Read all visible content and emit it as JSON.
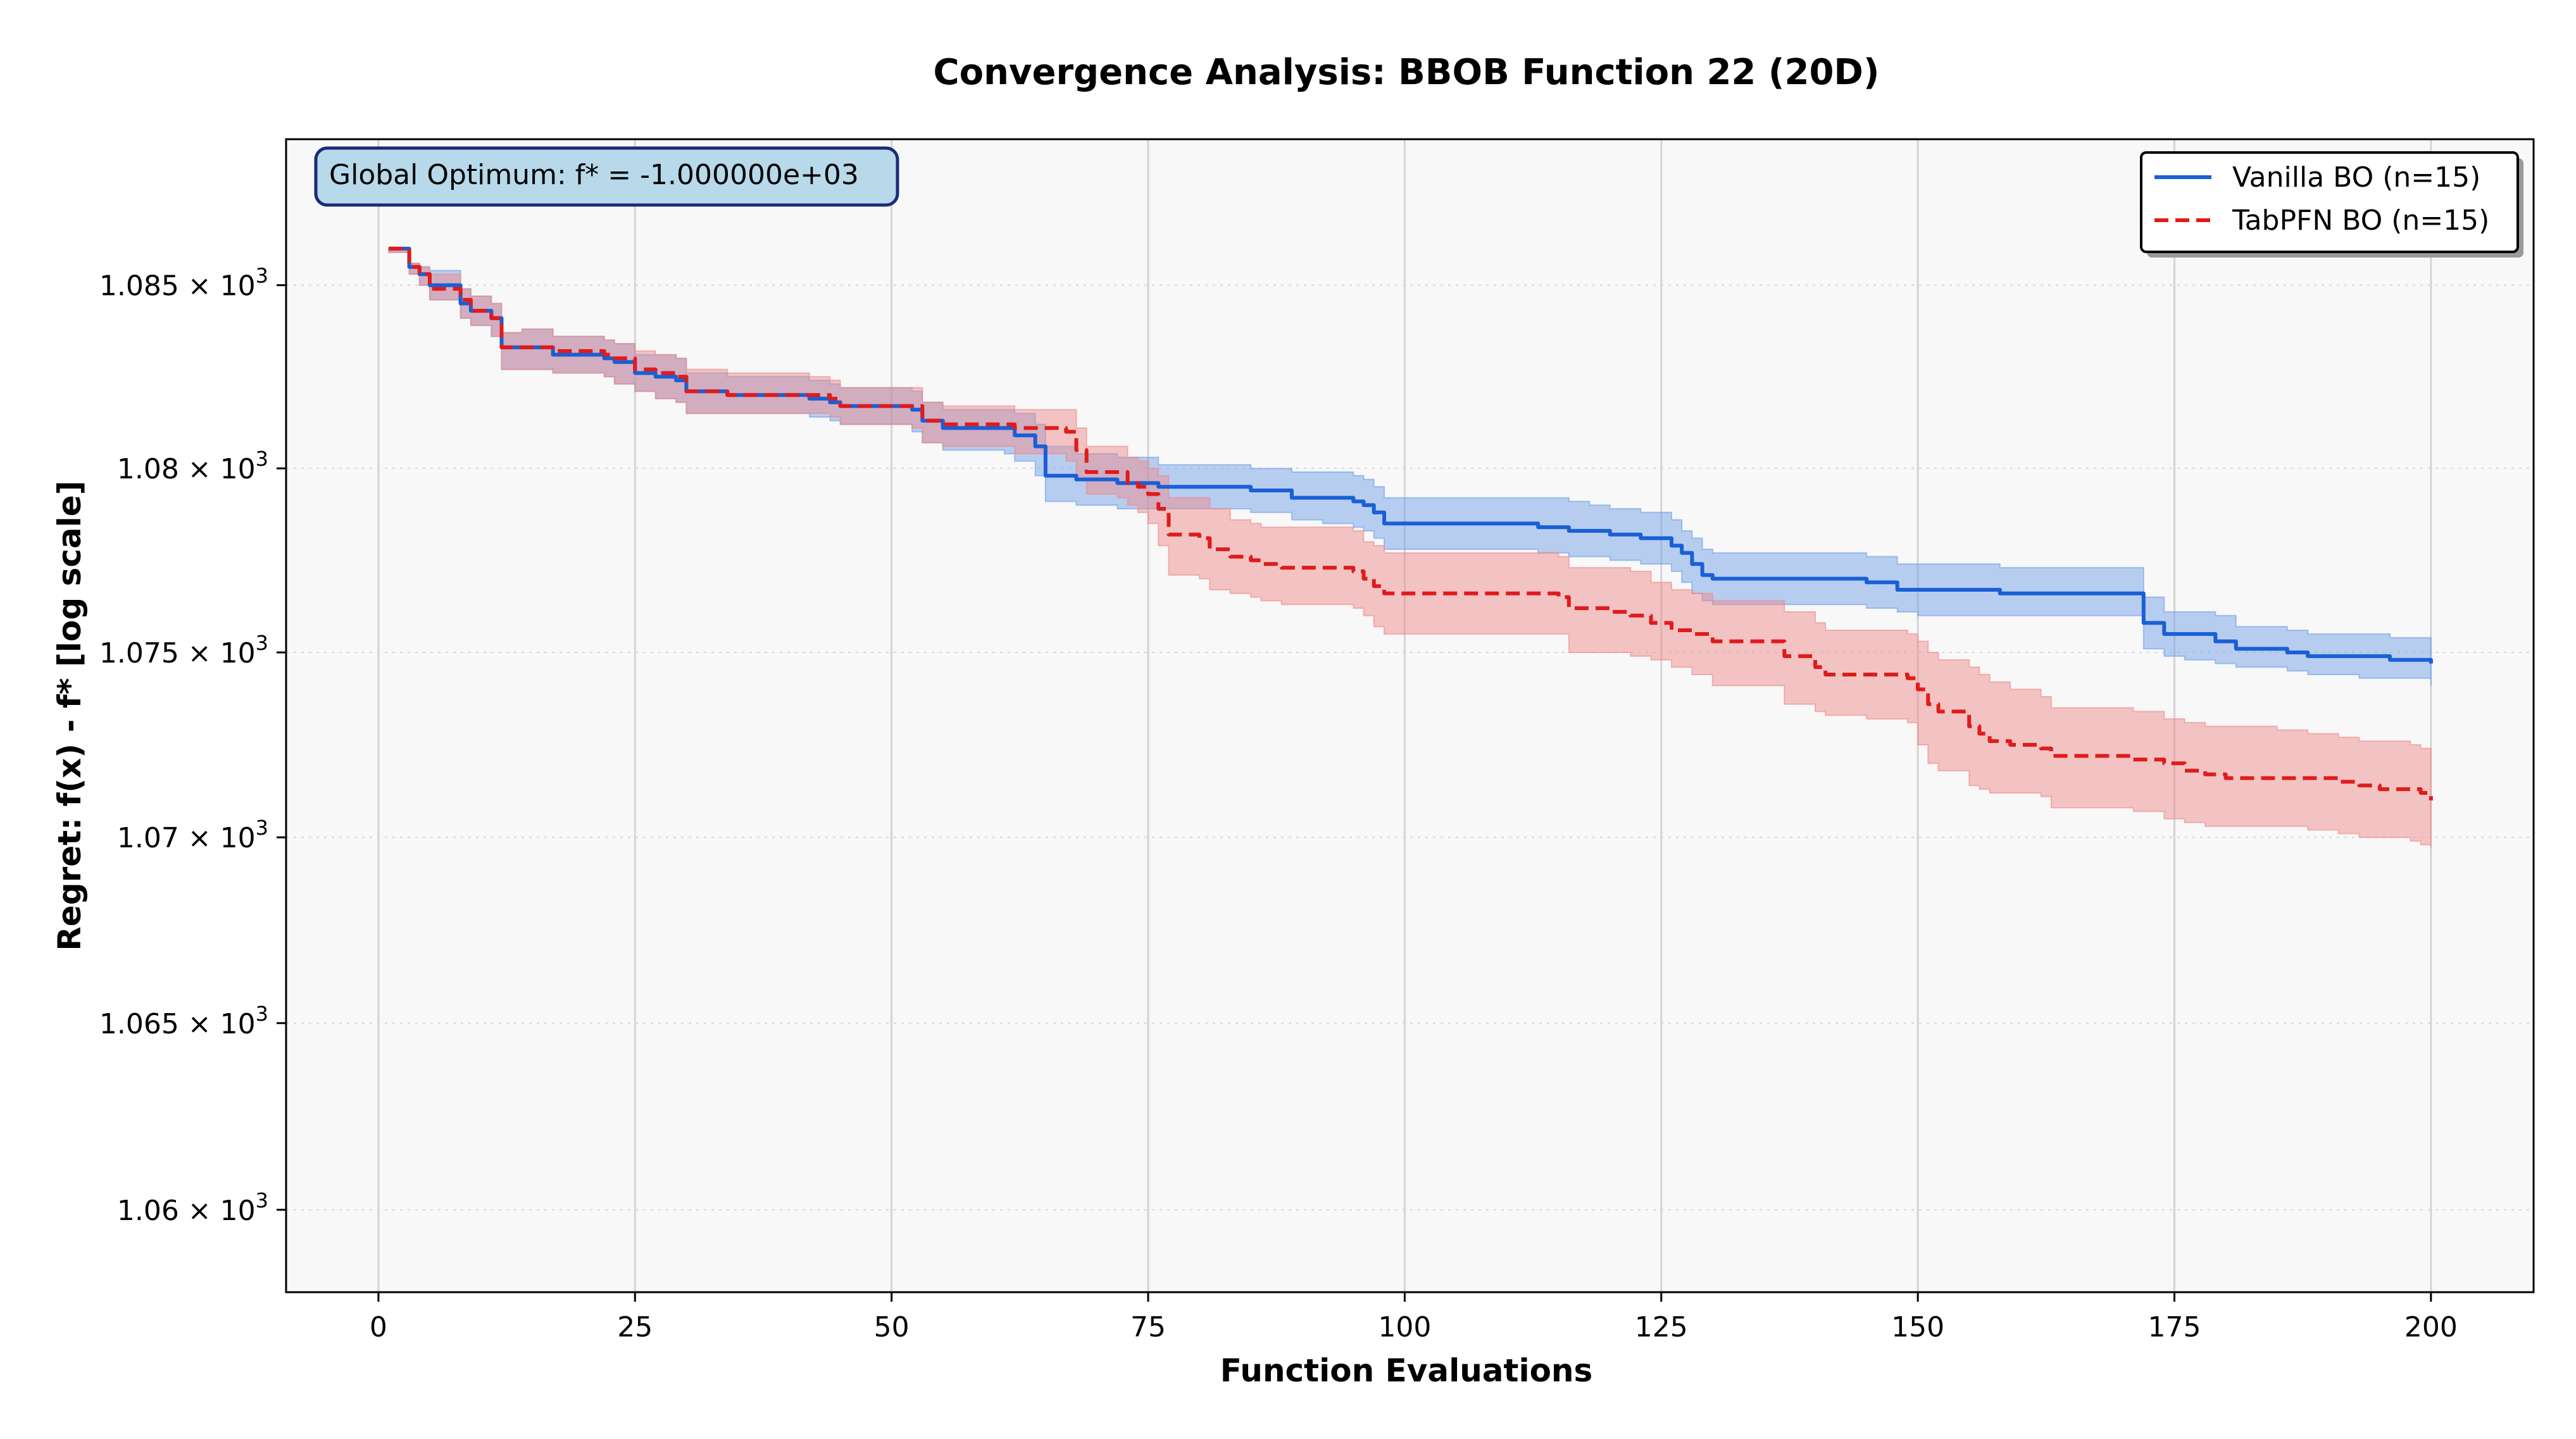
{
  "chart_data": {
    "type": "line",
    "title": "Convergence Analysis: BBOB Function 22 (20D)",
    "xlabel": "Function Evaluations",
    "ylabel": "Regret: f(x) - f* [log scale]",
    "xlim": [
      -9,
      210
    ],
    "ylim": [
      1057.8,
      1089.0
    ],
    "yscale": "log",
    "x_ticks": [
      0,
      25,
      50,
      75,
      100,
      125,
      150,
      175,
      200
    ],
    "x_tick_labels": [
      "0",
      "25",
      "50",
      "75",
      "100",
      "125",
      "150",
      "175",
      "200"
    ],
    "y_ticks": [
      1060,
      1065,
      1070,
      1075,
      1080,
      1085
    ],
    "y_tick_labels": [
      {
        "mantissa": "1.06",
        "exp": "3"
      },
      {
        "mantissa": "1.065",
        "exp": "3"
      },
      {
        "mantissa": "1.07",
        "exp": "3"
      },
      {
        "mantissa": "1.075",
        "exp": "3"
      },
      {
        "mantissa": "1.08",
        "exp": "3"
      },
      {
        "mantissa": "1.085",
        "exp": "3"
      }
    ],
    "y_tick_base": "10",
    "y_tick_times": "×",
    "grid": true,
    "legend_position": "top-right",
    "annotation": "Global Optimum: f* = -1.000000e+03",
    "series": [
      {
        "name": "Vanilla BO (n=15)",
        "color": "#1a5fd6",
        "band_color": "#6f9ee8",
        "line_style": "solid",
        "x": [
          1,
          3,
          4,
          5,
          8,
          9,
          11,
          12,
          14,
          17,
          22,
          23,
          25,
          27,
          29,
          30,
          34,
          42,
          44,
          45,
          52,
          53,
          55,
          61,
          62,
          64,
          65,
          68,
          70,
          72,
          75,
          76,
          85,
          86,
          89,
          92,
          95,
          96,
          97,
          98,
          103,
          110,
          113,
          116,
          118,
          120,
          123,
          125,
          126,
          127,
          128,
          129,
          130,
          140,
          145,
          148,
          150,
          158,
          171,
          172,
          174,
          176,
          179,
          181,
          186,
          188,
          193,
          196,
          200
        ],
        "y": [
          1086.0,
          1085.5,
          1085.3,
          1085.0,
          1084.5,
          1084.3,
          1084.1,
          1083.3,
          1083.3,
          1083.1,
          1083.0,
          1082.9,
          1082.6,
          1082.5,
          1082.4,
          1082.1,
          1082.0,
          1081.9,
          1081.8,
          1081.7,
          1081.6,
          1081.3,
          1081.1,
          1081.1,
          1080.9,
          1080.6,
          1079.8,
          1079.7,
          1079.7,
          1079.6,
          1079.6,
          1079.5,
          1079.4,
          1079.4,
          1079.2,
          1079.2,
          1079.1,
          1079.0,
          1078.8,
          1078.5,
          1078.5,
          1078.5,
          1078.4,
          1078.3,
          1078.3,
          1078.2,
          1078.1,
          1078.1,
          1077.9,
          1077.7,
          1077.4,
          1077.1,
          1077.0,
          1077.0,
          1076.9,
          1076.7,
          1076.7,
          1076.6,
          1076.6,
          1075.8,
          1075.5,
          1075.5,
          1075.3,
          1075.1,
          1075.0,
          1074.9,
          1074.9,
          1074.8,
          1074.7
        ],
        "lower": [
          1085.9,
          1085.3,
          1085.0,
          1084.6,
          1084.1,
          1083.9,
          1083.6,
          1082.7,
          1082.7,
          1082.6,
          1082.5,
          1082.3,
          1082.1,
          1081.9,
          1081.8,
          1081.5,
          1081.5,
          1081.4,
          1081.3,
          1081.2,
          1081.0,
          1080.7,
          1080.5,
          1080.4,
          1080.2,
          1079.8,
          1079.1,
          1079.0,
          1079.0,
          1078.9,
          1078.9,
          1078.9,
          1078.8,
          1078.8,
          1078.6,
          1078.5,
          1078.4,
          1078.3,
          1078.1,
          1077.8,
          1077.8,
          1077.8,
          1077.7,
          1077.6,
          1077.6,
          1077.5,
          1077.4,
          1077.4,
          1077.2,
          1076.9,
          1076.6,
          1076.4,
          1076.3,
          1076.3,
          1076.2,
          1076.1,
          1076.0,
          1076.0,
          1076.0,
          1075.1,
          1074.9,
          1074.8,
          1074.7,
          1074.6,
          1074.5,
          1074.4,
          1074.3,
          1074.3,
          1074.1
        ],
        "upper": [
          1086.0,
          1085.6,
          1085.5,
          1085.4,
          1084.9,
          1084.7,
          1084.5,
          1083.7,
          1083.8,
          1083.6,
          1083.5,
          1083.4,
          1083.1,
          1083.1,
          1083.0,
          1082.6,
          1082.5,
          1082.4,
          1082.3,
          1082.2,
          1082.1,
          1081.8,
          1081.6,
          1081.6,
          1081.5,
          1081.2,
          1080.6,
          1080.4,
          1080.4,
          1080.3,
          1080.3,
          1080.1,
          1080.0,
          1080.0,
          1079.9,
          1079.9,
          1079.8,
          1079.7,
          1079.5,
          1079.2,
          1079.2,
          1079.2,
          1079.2,
          1079.1,
          1079.0,
          1078.9,
          1078.8,
          1078.8,
          1078.6,
          1078.3,
          1078.1,
          1077.8,
          1077.7,
          1077.7,
          1077.6,
          1077.4,
          1077.4,
          1077.3,
          1077.3,
          1076.5,
          1076.1,
          1076.1,
          1076.0,
          1075.7,
          1075.6,
          1075.5,
          1075.5,
          1075.4,
          1075.3
        ]
      },
      {
        "name": "TabPFN BO (n=15)",
        "color": "#e01b1b",
        "band_color": "#ee8a8a",
        "line_style": "dashed",
        "x": [
          1,
          3,
          4,
          5,
          8,
          9,
          11,
          12,
          14,
          17,
          22,
          23,
          25,
          27,
          29,
          30,
          34,
          42,
          44,
          45,
          52,
          53,
          55,
          61,
          62,
          67,
          68,
          69,
          72,
          73,
          74,
          75,
          76,
          77,
          80,
          81,
          83,
          85,
          86,
          88,
          95,
          96,
          97,
          98,
          104,
          108,
          115,
          116,
          120,
          122,
          124,
          126,
          128,
          130,
          136,
          137,
          140,
          141,
          145,
          149,
          150,
          151,
          152,
          155,
          156,
          157,
          159,
          162,
          163,
          165,
          170,
          171,
          174,
          176,
          178,
          180,
          182,
          185,
          188,
          191,
          193,
          195,
          198,
          199,
          200
        ],
        "y": [
          1086.0,
          1085.5,
          1085.3,
          1084.9,
          1084.6,
          1084.3,
          1084.1,
          1083.3,
          1083.3,
          1083.2,
          1083.1,
          1083.0,
          1082.7,
          1082.6,
          1082.5,
          1082.1,
          1082.0,
          1082.0,
          1081.9,
          1081.7,
          1081.7,
          1081.3,
          1081.2,
          1081.2,
          1081.1,
          1081.0,
          1080.5,
          1079.9,
          1079.9,
          1079.6,
          1079.5,
          1079.3,
          1078.9,
          1078.2,
          1078.1,
          1077.8,
          1077.6,
          1077.5,
          1077.4,
          1077.3,
          1077.2,
          1077.0,
          1076.8,
          1076.6,
          1076.6,
          1076.6,
          1076.5,
          1076.2,
          1076.1,
          1076.0,
          1075.8,
          1075.6,
          1075.5,
          1075.3,
          1075.3,
          1074.9,
          1074.6,
          1074.4,
          1074.4,
          1074.3,
          1074.0,
          1073.6,
          1073.4,
          1073.0,
          1072.8,
          1072.6,
          1072.5,
          1072.4,
          1072.2,
          1072.2,
          1072.2,
          1072.1,
          1072.0,
          1071.8,
          1071.7,
          1071.6,
          1071.6,
          1071.6,
          1071.6,
          1071.5,
          1071.4,
          1071.3,
          1071.3,
          1071.2,
          1071.0
        ],
        "lower": [
          1085.9,
          1085.3,
          1085.0,
          1084.6,
          1084.1,
          1083.9,
          1083.6,
          1082.7,
          1082.7,
          1082.6,
          1082.5,
          1082.3,
          1082.1,
          1081.9,
          1081.8,
          1081.5,
          1081.5,
          1081.5,
          1081.4,
          1081.2,
          1081.1,
          1080.7,
          1080.6,
          1080.6,
          1080.4,
          1080.2,
          1079.7,
          1079.3,
          1079.2,
          1079.0,
          1078.8,
          1078.5,
          1077.9,
          1077.1,
          1077.0,
          1076.7,
          1076.6,
          1076.5,
          1076.4,
          1076.3,
          1076.2,
          1076.0,
          1075.7,
          1075.5,
          1075.5,
          1075.5,
          1075.5,
          1075.0,
          1075.0,
          1074.9,
          1074.8,
          1074.6,
          1074.4,
          1074.1,
          1074.1,
          1073.6,
          1073.4,
          1073.3,
          1073.2,
          1073.1,
          1072.5,
          1072.0,
          1071.8,
          1071.4,
          1071.3,
          1071.2,
          1071.2,
          1071.1,
          1070.8,
          1070.8,
          1070.8,
          1070.7,
          1070.5,
          1070.4,
          1070.3,
          1070.3,
          1070.3,
          1070.3,
          1070.2,
          1070.1,
          1070.0,
          1070.0,
          1069.9,
          1069.8,
          1069.7
        ],
        "upper": [
          1086.0,
          1085.6,
          1085.5,
          1085.3,
          1084.9,
          1084.7,
          1084.5,
          1083.7,
          1083.8,
          1083.6,
          1083.5,
          1083.4,
          1083.2,
          1083.1,
          1083.0,
          1082.7,
          1082.6,
          1082.5,
          1082.4,
          1082.2,
          1082.2,
          1081.8,
          1081.7,
          1081.7,
          1081.6,
          1081.6,
          1081.1,
          1080.6,
          1080.6,
          1080.3,
          1080.2,
          1080.0,
          1079.8,
          1079.2,
          1079.2,
          1078.9,
          1078.6,
          1078.5,
          1078.4,
          1078.4,
          1078.3,
          1078.0,
          1077.9,
          1077.7,
          1077.7,
          1077.7,
          1077.6,
          1077.3,
          1077.3,
          1077.2,
          1076.9,
          1076.7,
          1076.6,
          1076.4,
          1076.4,
          1076.1,
          1075.8,
          1075.6,
          1075.6,
          1075.5,
          1075.3,
          1075.0,
          1074.8,
          1074.6,
          1074.4,
          1074.2,
          1074.0,
          1073.8,
          1073.5,
          1073.5,
          1073.5,
          1073.4,
          1073.2,
          1073.1,
          1073.0,
          1073.0,
          1073.0,
          1072.9,
          1072.8,
          1072.7,
          1072.6,
          1072.6,
          1072.5,
          1072.4,
          1072.3
        ]
      }
    ]
  }
}
